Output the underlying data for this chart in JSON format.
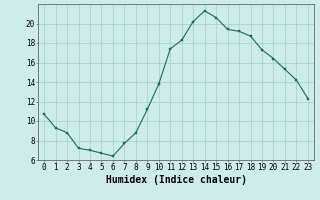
{
  "x": [
    0,
    1,
    2,
    3,
    4,
    5,
    6,
    7,
    8,
    9,
    10,
    11,
    12,
    13,
    14,
    15,
    16,
    17,
    18,
    19,
    20,
    21,
    22,
    23
  ],
  "y": [
    10.7,
    9.3,
    8.8,
    7.2,
    7.0,
    6.7,
    6.4,
    7.7,
    8.8,
    11.2,
    13.8,
    17.4,
    18.3,
    20.2,
    21.3,
    20.6,
    19.4,
    19.2,
    18.7,
    17.3,
    16.4,
    15.3,
    14.2,
    12.3
  ],
  "line_color": "#1a6b5a",
  "marker": "s",
  "marker_size": 2.0,
  "bg_color": "#ceecea",
  "grid_color": "#aad4d0",
  "xlabel": "Humidex (Indice chaleur)",
  "ylim": [
    6,
    22
  ],
  "yticks": [
    6,
    8,
    10,
    12,
    14,
    16,
    18,
    20
  ],
  "xlim": [
    -0.5,
    23.5
  ],
  "xticks": [
    0,
    1,
    2,
    3,
    4,
    5,
    6,
    7,
    8,
    9,
    10,
    11,
    12,
    13,
    14,
    15,
    16,
    17,
    18,
    19,
    20,
    21,
    22,
    23
  ],
  "xtick_labels": [
    "0",
    "1",
    "2",
    "3",
    "4",
    "5",
    "6",
    "7",
    "8",
    "9",
    "10",
    "11",
    "12",
    "13",
    "14",
    "15",
    "16",
    "17",
    "18",
    "19",
    "20",
    "21",
    "22",
    "23"
  ],
  "tick_fontsize": 5.5,
  "xlabel_fontsize": 7.0,
  "linewidth": 0.8
}
